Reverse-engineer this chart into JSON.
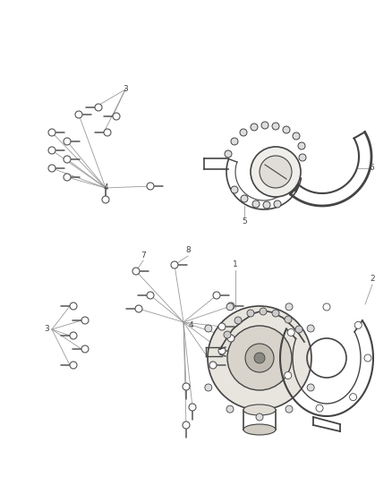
{
  "background_color": "#ffffff",
  "figure_width": 4.38,
  "figure_height": 5.33,
  "dpi": 100,
  "bolt_color": "#555555",
  "line_color": "#999999",
  "part_color": "#444444",
  "label_color": "#444444",
  "label_fontsize": 6.5
}
